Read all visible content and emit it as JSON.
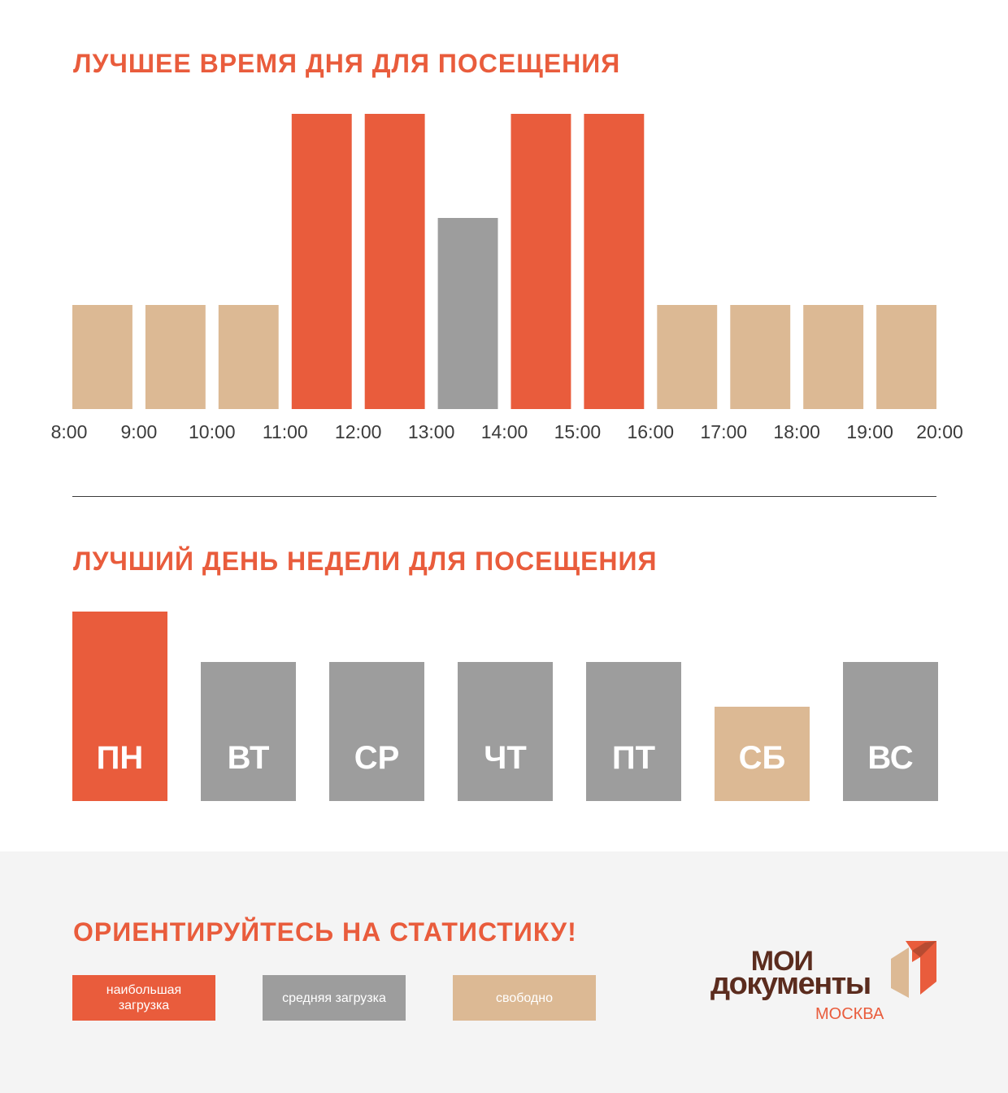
{
  "charts": {
    "hours_title": "ЛУЧШЕЕ ВРЕМЯ ДНЯ ДЛЯ ПОСЕЩЕНИЯ",
    "days_title": "ЛУЧШИЙ ДЕНЬ НЕДЕЛИ ДЛЯ ПОСЕЩЕНИЯ"
  },
  "chart_data": [
    {
      "type": "bar",
      "title": "ЛУЧШЕЕ ВРЕМЯ ДНЯ ДЛЯ ПОСЕЩЕНИЯ",
      "x_ticks": [
        "8:00",
        "9:00",
        "10:00",
        "11:00",
        "12:00",
        "13:00",
        "14:00",
        "15:00",
        "16:00",
        "17:00",
        "18:00",
        "19:00",
        "20:00"
      ],
      "values": [
        1,
        1,
        1,
        3,
        3,
        2,
        3,
        3,
        1,
        1,
        1,
        1
      ],
      "levels": [
        "свободно",
        "свободно",
        "свободно",
        "наибольшая загрузка",
        "наибольшая загрузка",
        "средняя загрузка",
        "наибольшая загрузка",
        "наибольшая загрузка",
        "свободно",
        "свободно",
        "свободно",
        "свободно"
      ],
      "ylim": [
        0,
        3
      ],
      "grid": false
    },
    {
      "type": "bar",
      "title": "ЛУЧШИЙ ДЕНЬ НЕДЕЛИ ДЛЯ ПОСЕЩЕНИЯ",
      "categories": [
        "ПН",
        "ВТ",
        "СР",
        "ЧТ",
        "ПТ",
        "СБ",
        "ВС"
      ],
      "values": [
        3,
        2,
        2,
        2,
        2,
        1,
        2
      ],
      "levels": [
        "наибольшая загрузка",
        "средняя загрузка",
        "средняя загрузка",
        "средняя загрузка",
        "средняя загрузка",
        "свободно",
        "средняя загрузка"
      ],
      "ylim": [
        0,
        3
      ],
      "grid": false
    }
  ],
  "colors": {
    "high": "#e95c3c",
    "medium": "#9d9d9d",
    "free": "#dcb994",
    "text": "#3b3b3b",
    "footer_bg": "#f4f4f4",
    "logo_brown": "#5b2c1e"
  },
  "footer": {
    "title": "ОРИЕНТИРУЙТЕСЬ НА СТАТИСТИКУ!",
    "legend": [
      {
        "label": "наибольшая загрузка",
        "level": "high"
      },
      {
        "label": "средняя загрузка",
        "level": "medium"
      },
      {
        "label": "свободно",
        "level": "free"
      }
    ]
  },
  "logo": {
    "line1": "МОИ",
    "line2": "документы",
    "city": "МОСКВА",
    "icon": "moi-dokumenty-logo-icon"
  }
}
